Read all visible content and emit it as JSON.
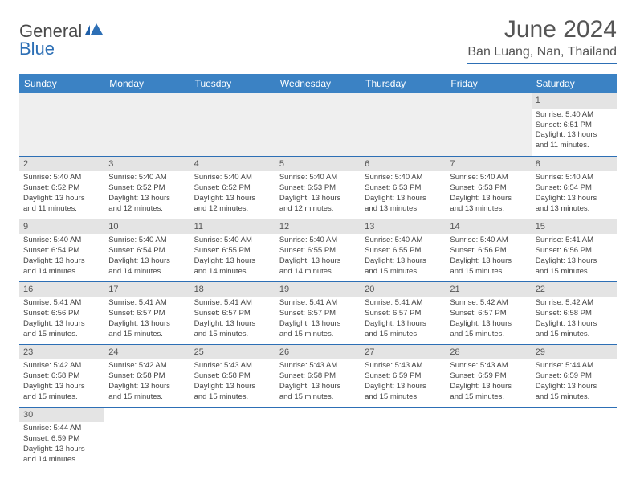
{
  "logo": {
    "dark": "General",
    "blue": "Blue"
  },
  "title": "June 2024",
  "location": "Ban Luang, Nan, Thailand",
  "header_bg": "#3b82c4",
  "weekdays": [
    "Sunday",
    "Monday",
    "Tuesday",
    "Wednesday",
    "Thursday",
    "Friday",
    "Saturday"
  ],
  "firstWeekEmptyCols": 6,
  "days": [
    {
      "n": "1",
      "sr": "Sunrise: 5:40 AM",
      "ss": "Sunset: 6:51 PM",
      "d1": "Daylight: 13 hours",
      "d2": "and 11 minutes."
    },
    {
      "n": "2",
      "sr": "Sunrise: 5:40 AM",
      "ss": "Sunset: 6:52 PM",
      "d1": "Daylight: 13 hours",
      "d2": "and 11 minutes."
    },
    {
      "n": "3",
      "sr": "Sunrise: 5:40 AM",
      "ss": "Sunset: 6:52 PM",
      "d1": "Daylight: 13 hours",
      "d2": "and 12 minutes."
    },
    {
      "n": "4",
      "sr": "Sunrise: 5:40 AM",
      "ss": "Sunset: 6:52 PM",
      "d1": "Daylight: 13 hours",
      "d2": "and 12 minutes."
    },
    {
      "n": "5",
      "sr": "Sunrise: 5:40 AM",
      "ss": "Sunset: 6:53 PM",
      "d1": "Daylight: 13 hours",
      "d2": "and 12 minutes."
    },
    {
      "n": "6",
      "sr": "Sunrise: 5:40 AM",
      "ss": "Sunset: 6:53 PM",
      "d1": "Daylight: 13 hours",
      "d2": "and 13 minutes."
    },
    {
      "n": "7",
      "sr": "Sunrise: 5:40 AM",
      "ss": "Sunset: 6:53 PM",
      "d1": "Daylight: 13 hours",
      "d2": "and 13 minutes."
    },
    {
      "n": "8",
      "sr": "Sunrise: 5:40 AM",
      "ss": "Sunset: 6:54 PM",
      "d1": "Daylight: 13 hours",
      "d2": "and 13 minutes."
    },
    {
      "n": "9",
      "sr": "Sunrise: 5:40 AM",
      "ss": "Sunset: 6:54 PM",
      "d1": "Daylight: 13 hours",
      "d2": "and 14 minutes."
    },
    {
      "n": "10",
      "sr": "Sunrise: 5:40 AM",
      "ss": "Sunset: 6:54 PM",
      "d1": "Daylight: 13 hours",
      "d2": "and 14 minutes."
    },
    {
      "n": "11",
      "sr": "Sunrise: 5:40 AM",
      "ss": "Sunset: 6:55 PM",
      "d1": "Daylight: 13 hours",
      "d2": "and 14 minutes."
    },
    {
      "n": "12",
      "sr": "Sunrise: 5:40 AM",
      "ss": "Sunset: 6:55 PM",
      "d1": "Daylight: 13 hours",
      "d2": "and 14 minutes."
    },
    {
      "n": "13",
      "sr": "Sunrise: 5:40 AM",
      "ss": "Sunset: 6:55 PM",
      "d1": "Daylight: 13 hours",
      "d2": "and 15 minutes."
    },
    {
      "n": "14",
      "sr": "Sunrise: 5:40 AM",
      "ss": "Sunset: 6:56 PM",
      "d1": "Daylight: 13 hours",
      "d2": "and 15 minutes."
    },
    {
      "n": "15",
      "sr": "Sunrise: 5:41 AM",
      "ss": "Sunset: 6:56 PM",
      "d1": "Daylight: 13 hours",
      "d2": "and 15 minutes."
    },
    {
      "n": "16",
      "sr": "Sunrise: 5:41 AM",
      "ss": "Sunset: 6:56 PM",
      "d1": "Daylight: 13 hours",
      "d2": "and 15 minutes."
    },
    {
      "n": "17",
      "sr": "Sunrise: 5:41 AM",
      "ss": "Sunset: 6:57 PM",
      "d1": "Daylight: 13 hours",
      "d2": "and 15 minutes."
    },
    {
      "n": "18",
      "sr": "Sunrise: 5:41 AM",
      "ss": "Sunset: 6:57 PM",
      "d1": "Daylight: 13 hours",
      "d2": "and 15 minutes."
    },
    {
      "n": "19",
      "sr": "Sunrise: 5:41 AM",
      "ss": "Sunset: 6:57 PM",
      "d1": "Daylight: 13 hours",
      "d2": "and 15 minutes."
    },
    {
      "n": "20",
      "sr": "Sunrise: 5:41 AM",
      "ss": "Sunset: 6:57 PM",
      "d1": "Daylight: 13 hours",
      "d2": "and 15 minutes."
    },
    {
      "n": "21",
      "sr": "Sunrise: 5:42 AM",
      "ss": "Sunset: 6:57 PM",
      "d1": "Daylight: 13 hours",
      "d2": "and 15 minutes."
    },
    {
      "n": "22",
      "sr": "Sunrise: 5:42 AM",
      "ss": "Sunset: 6:58 PM",
      "d1": "Daylight: 13 hours",
      "d2": "and 15 minutes."
    },
    {
      "n": "23",
      "sr": "Sunrise: 5:42 AM",
      "ss": "Sunset: 6:58 PM",
      "d1": "Daylight: 13 hours",
      "d2": "and 15 minutes."
    },
    {
      "n": "24",
      "sr": "Sunrise: 5:42 AM",
      "ss": "Sunset: 6:58 PM",
      "d1": "Daylight: 13 hours",
      "d2": "and 15 minutes."
    },
    {
      "n": "25",
      "sr": "Sunrise: 5:43 AM",
      "ss": "Sunset: 6:58 PM",
      "d1": "Daylight: 13 hours",
      "d2": "and 15 minutes."
    },
    {
      "n": "26",
      "sr": "Sunrise: 5:43 AM",
      "ss": "Sunset: 6:58 PM",
      "d1": "Daylight: 13 hours",
      "d2": "and 15 minutes."
    },
    {
      "n": "27",
      "sr": "Sunrise: 5:43 AM",
      "ss": "Sunset: 6:59 PM",
      "d1": "Daylight: 13 hours",
      "d2": "and 15 minutes."
    },
    {
      "n": "28",
      "sr": "Sunrise: 5:43 AM",
      "ss": "Sunset: 6:59 PM",
      "d1": "Daylight: 13 hours",
      "d2": "and 15 minutes."
    },
    {
      "n": "29",
      "sr": "Sunrise: 5:44 AM",
      "ss": "Sunset: 6:59 PM",
      "d1": "Daylight: 13 hours",
      "d2": "and 15 minutes."
    },
    {
      "n": "30",
      "sr": "Sunrise: 5:44 AM",
      "ss": "Sunset: 6:59 PM",
      "d1": "Daylight: 13 hours",
      "d2": "and 14 minutes."
    }
  ]
}
